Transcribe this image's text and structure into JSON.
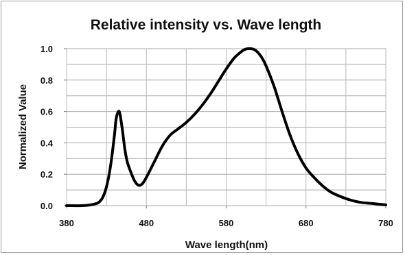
{
  "chart_data": {
    "type": "line",
    "title": "Relative intensity vs. Wave length",
    "xlabel": "Wave length(nm)",
    "ylabel": "Normalized Value",
    "xlim": [
      380,
      780
    ],
    "ylim": [
      0,
      1.0
    ],
    "x_ticks": [
      380,
      480,
      580,
      680,
      780
    ],
    "x_tick_labels": [
      "380",
      "480",
      "580",
      "680",
      "780"
    ],
    "y_ticks": [
      0,
      0.2,
      0.4,
      0.6,
      0.8,
      1.0
    ],
    "y_tick_labels": [
      "0.0",
      "0.2",
      "0.4",
      "0.6",
      "0.8",
      "1.0"
    ],
    "grid": true,
    "line_color": "#000000",
    "series": [
      {
        "x": [
          380,
          400,
          410,
          415,
          420,
          425,
          430,
          435,
          440,
          442,
          445,
          447,
          450,
          453,
          456,
          460,
          465,
          470,
          475,
          480,
          490,
          500,
          510,
          520,
          530,
          540,
          550,
          560,
          570,
          580,
          590,
          600,
          605,
          610,
          615,
          620,
          625,
          630,
          640,
          650,
          660,
          670,
          680,
          690,
          700,
          710,
          720,
          730,
          740,
          750,
          760,
          770,
          780
        ],
        "y": [
          0.0,
          0.0,
          0.005,
          0.01,
          0.02,
          0.05,
          0.12,
          0.25,
          0.45,
          0.55,
          0.6,
          0.58,
          0.48,
          0.36,
          0.28,
          0.22,
          0.16,
          0.13,
          0.14,
          0.18,
          0.28,
          0.38,
          0.45,
          0.49,
          0.53,
          0.58,
          0.64,
          0.71,
          0.79,
          0.87,
          0.94,
          0.985,
          0.998,
          1.0,
          0.995,
          0.975,
          0.94,
          0.89,
          0.76,
          0.6,
          0.45,
          0.33,
          0.24,
          0.18,
          0.13,
          0.09,
          0.065,
          0.045,
          0.03,
          0.02,
          0.015,
          0.01,
          0.005
        ]
      }
    ]
  }
}
